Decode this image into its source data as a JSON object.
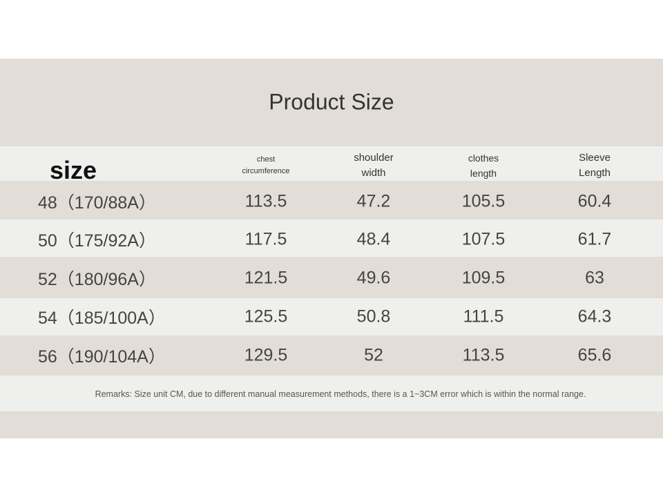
{
  "title": "Product Size",
  "table": {
    "header": [
      "size",
      "chest circumference",
      "shoulder width",
      "clothes length",
      "Sleeve Length"
    ],
    "rows": [
      [
        "48（170/88A）",
        "113.5",
        "47.2",
        "105.5",
        "60.4"
      ],
      [
        "50（175/92A）",
        "117.5",
        "48.4",
        "107.5",
        "61.7"
      ],
      [
        "52（180/96A）",
        "121.5",
        "49.6",
        "109.5",
        "63"
      ],
      [
        "54（185/100A）",
        "125.5",
        "50.8",
        "111.5",
        "64.3"
      ],
      [
        "56（190/104A）",
        "129.5",
        "52",
        "113.5",
        "65.6"
      ]
    ]
  },
  "remarks": "Remarks: Size unit CM, due to different manual measurement methods, there is a 1~3CM error which is within the normal range."
}
